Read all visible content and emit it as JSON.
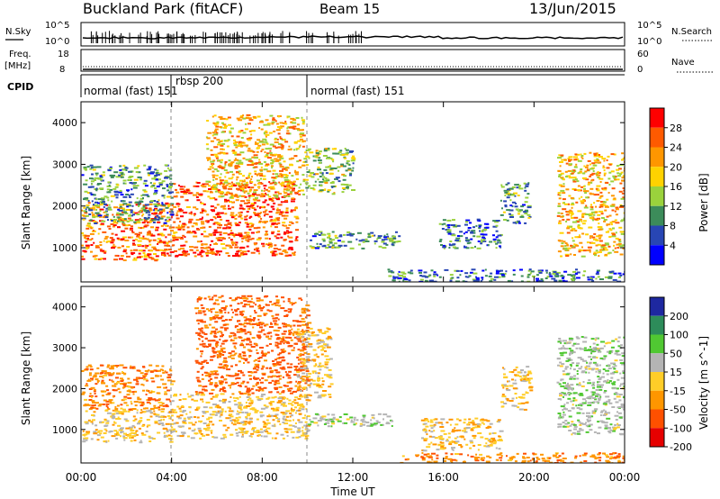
{
  "header": {
    "title": "Buckland Park (fitACF)",
    "beam": "Beam 15",
    "date": "13/Jun/2015"
  },
  "noise_panel": {
    "left_label": "N.Sky",
    "right_label": "N.Search",
    "left_ticks": [
      "10^5",
      "10^0"
    ],
    "right_ticks": [
      "10^5",
      "10^0"
    ]
  },
  "freq_panel": {
    "left_label_1": "Freq.",
    "left_label_2": "[MHz]",
    "right_label": "Nave",
    "left_ticks": [
      "18",
      "8"
    ],
    "right_ticks": [
      "60",
      "0"
    ]
  },
  "cpid_panel": {
    "label": "CPID",
    "segments": [
      {
        "label": "normal (fast) 151",
        "start_hour": 0,
        "end_hour": 4.0
      },
      {
        "label": "rbsp 200",
        "start_hour": 4.0,
        "end_hour": 10.0
      },
      {
        "label": "normal (fast) 151",
        "start_hour": 10.0,
        "end_hour": 24.0
      }
    ]
  },
  "power_colorbar": {
    "label": "Power [dB]",
    "ticks": [
      "28",
      "24",
      "20",
      "16",
      "12",
      "8",
      "4"
    ],
    "colors": [
      "#ff0000",
      "#ff5a00",
      "#ff9600",
      "#ffd200",
      "#9ad23c",
      "#3c8c5a",
      "#2846b4",
      "#0000ff"
    ]
  },
  "velocity_colorbar": {
    "label": "Velocity [m s^-1]",
    "ticks": [
      "200",
      "100",
      "50",
      "15",
      "-15",
      "-50",
      "-100",
      "-200"
    ],
    "colors": [
      "#1e28a0",
      "#2d8c5a",
      "#50c832",
      "#b4b4b4",
      "#ffcd28",
      "#ff9600",
      "#ff5000",
      "#e60000"
    ]
  },
  "chart_data": [
    {
      "type": "heatmap",
      "title": "",
      "quantity": "Power",
      "xlabel": "Time UT",
      "ylabel": "Slant Range [km]",
      "x_ticks": [
        "00:00",
        "04:00",
        "08:00",
        "12:00",
        "16:00",
        "20:00",
        "00:00"
      ],
      "y_ticks": [
        "1000",
        "2000",
        "3000",
        "4000"
      ],
      "xlim": [
        0,
        24
      ],
      "ylim": [
        180,
        4500
      ],
      "unit": "dB",
      "regions": [
        {
          "t0": 0.0,
          "t1": 4.0,
          "r0": 700,
          "r1": 2100,
          "value": 24
        },
        {
          "t0": 0.0,
          "t1": 4.0,
          "r0": 1600,
          "r1": 3000,
          "value": 10
        },
        {
          "t0": 4.0,
          "t1": 9.5,
          "r0": 800,
          "r1": 2600,
          "value": 26
        },
        {
          "t0": 5.5,
          "t1": 9.8,
          "r0": 2200,
          "r1": 4200,
          "value": 20
        },
        {
          "t0": 9.8,
          "t1": 12.0,
          "r0": 2300,
          "r1": 3400,
          "value": 14
        },
        {
          "t0": 10.0,
          "t1": 14.0,
          "r0": 1000,
          "r1": 1400,
          "value": 10
        },
        {
          "t0": 15.8,
          "t1": 18.5,
          "r0": 1000,
          "r1": 1700,
          "value": 8
        },
        {
          "t0": 18.5,
          "t1": 19.8,
          "r0": 1600,
          "r1": 2600,
          "value": 10
        },
        {
          "t0": 21.0,
          "t1": 24.0,
          "r0": 800,
          "r1": 3300,
          "value": 20
        },
        {
          "t0": 13.5,
          "t1": 24.0,
          "r0": 200,
          "r1": 500,
          "value": 8
        }
      ]
    },
    {
      "type": "heatmap",
      "title": "",
      "quantity": "Velocity",
      "xlabel": "Time UT",
      "ylabel": "Slant Range [km]",
      "x_ticks": [
        "00:00",
        "04:00",
        "08:00",
        "12:00",
        "16:00",
        "20:00",
        "00:00"
      ],
      "y_ticks": [
        "1000",
        "2000",
        "3000",
        "4000"
      ],
      "xlim": [
        0,
        24
      ],
      "ylim": [
        180,
        4500
      ],
      "unit": "m s^-1",
      "regions": [
        {
          "t0": 0.0,
          "t1": 4.0,
          "r0": 700,
          "r1": 1500,
          "value": 0
        },
        {
          "t0": 0.0,
          "t1": 4.0,
          "r0": 1500,
          "r1": 2600,
          "value": -40
        },
        {
          "t0": 4.0,
          "t1": 10.0,
          "r0": 800,
          "r1": 1900,
          "value": 0
        },
        {
          "t0": 5.0,
          "t1": 10.0,
          "r0": 1900,
          "r1": 4300,
          "value": -60
        },
        {
          "t0": 9.5,
          "t1": 11.0,
          "r0": 1800,
          "r1": 3500,
          "value": 0
        },
        {
          "t0": 10.0,
          "t1": 14.0,
          "r0": 1100,
          "r1": 1400,
          "value": 40
        },
        {
          "t0": 15.0,
          "t1": 18.5,
          "r0": 500,
          "r1": 1300,
          "value": 0
        },
        {
          "t0": 18.5,
          "t1": 19.8,
          "r0": 1500,
          "r1": 2600,
          "value": 0
        },
        {
          "t0": 21.0,
          "t1": 24.0,
          "r0": 900,
          "r1": 3300,
          "value": 40
        },
        {
          "t0": 14.0,
          "t1": 24.0,
          "r0": 200,
          "r1": 450,
          "value": -40
        }
      ]
    }
  ]
}
